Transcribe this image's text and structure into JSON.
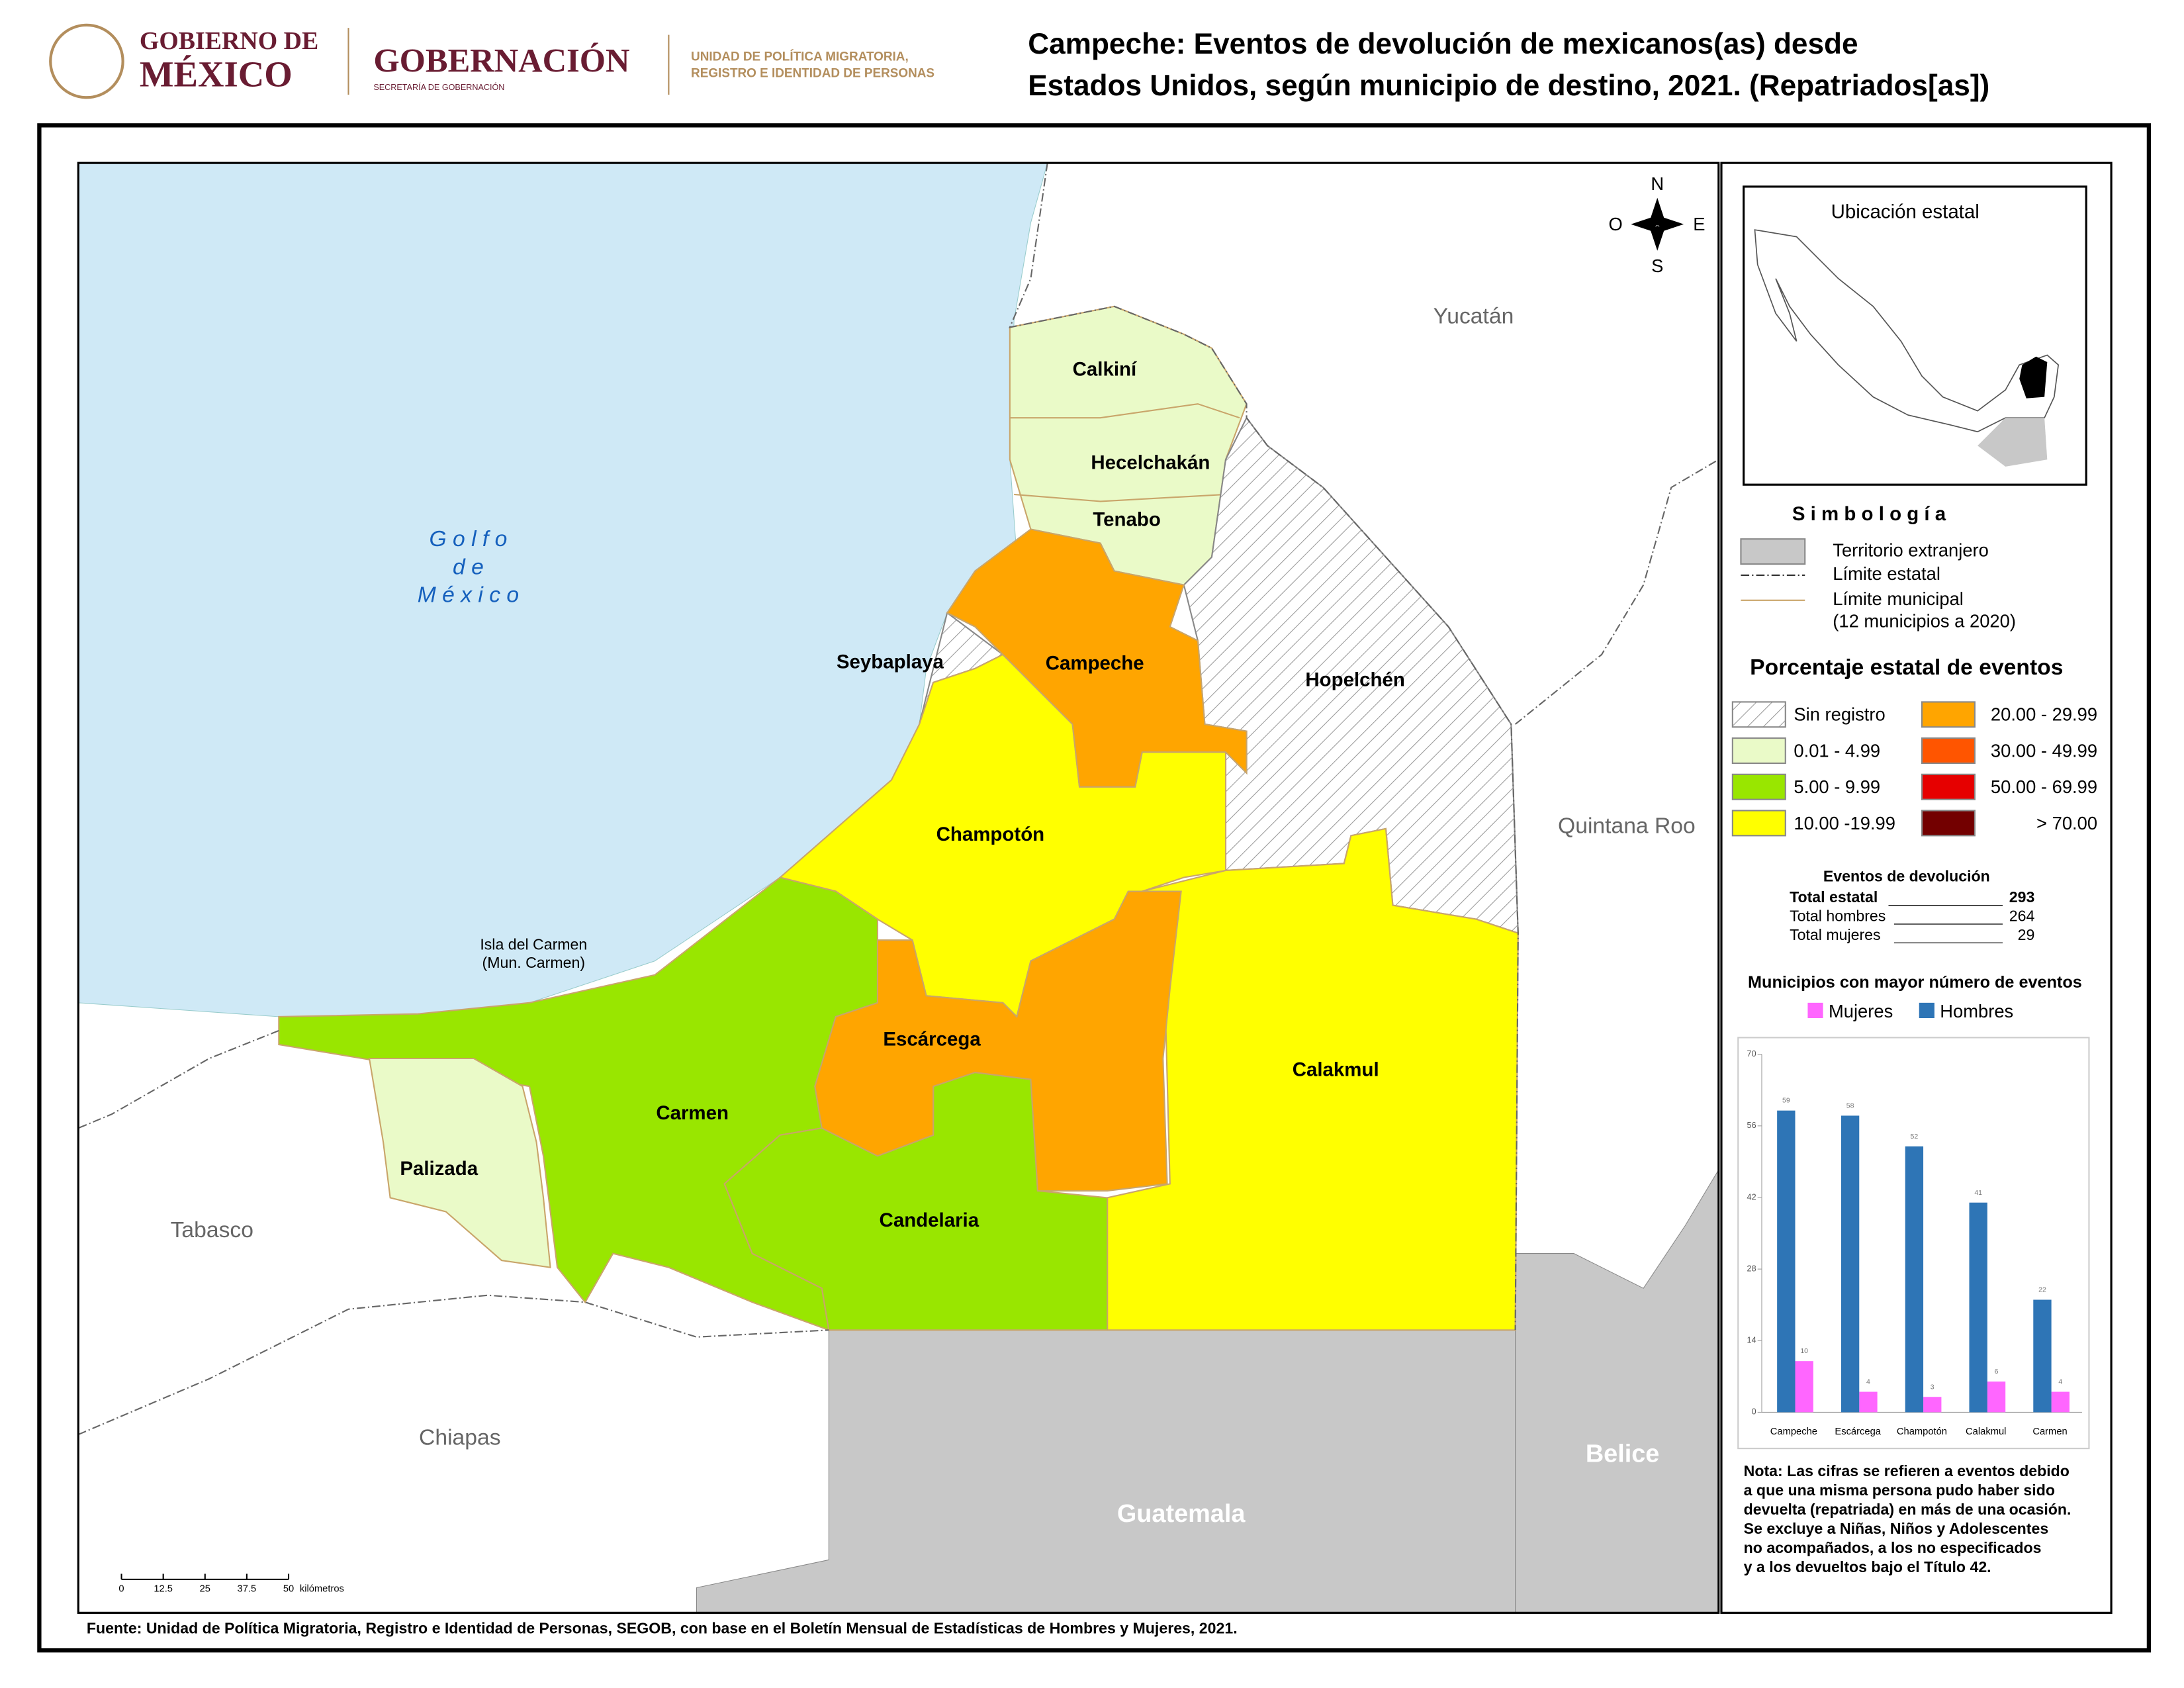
{
  "header": {
    "logo_line1": "GOBIERNO DE",
    "logo_line2": "MÉXICO",
    "ministry": "GOBERNACIÓN",
    "ministry_sub": "SECRETARÍA DE GOBERNACIÓN",
    "unit_line1": "UNIDAD DE POLÍTICA MIGRATORIA,",
    "unit_line2": "REGISTRO E IDENTIDAD DE PERSONAS"
  },
  "title": [
    "Campeche: Eventos de devolución de mexicanos(as) desde",
    "Estados Unidos, según municipio de destino, 2021. (Repatriados[as])"
  ],
  "map": {
    "sea": [
      "G o l f o",
      "d e",
      "M é x i c o"
    ],
    "neighbors": [
      "Yucatán",
      "Quintana Roo",
      "Tabasco",
      "Chiapas"
    ],
    "countries": [
      "Guatemala",
      "Belice"
    ],
    "municipalities": [
      "Calkiní",
      "Hecelchakán",
      "Tenabo",
      "Campeche",
      "Seybaplaya",
      "Hopelchén",
      "Champotón",
      "Calakmul",
      "Escárcega",
      "Candelaria",
      "Carmen",
      "Palizada"
    ],
    "island": [
      "Isla del Carmen",
      "(Mun. Carmen)"
    ],
    "compass": [
      "N",
      "S",
      "O",
      "E"
    ],
    "scale_bar": {
      "ticks": [
        0,
        12.5,
        25,
        37.5,
        50
      ],
      "unit": "kilómetros"
    }
  },
  "inset": {
    "title": "Ubicación estatal"
  },
  "symbology": {
    "title": "S i m b o l o g í a",
    "items": [
      "Territorio extranjero",
      "Límite estatal",
      "Límite municipal",
      "(12 municipios a 2020)"
    ]
  },
  "classes": {
    "title": "Porcentaje estatal de eventos",
    "items": [
      {
        "label": "Sin registro",
        "color": "hatch"
      },
      {
        "label": "0.01  - 4.99",
        "color": "#eafac8"
      },
      {
        "label": "5.00  - 9.99",
        "color": "#99e600"
      },
      {
        "label": "10.00 -19.99",
        "color": "#ffff00"
      },
      {
        "label": "20.00 - 29.99",
        "color": "#ffa500"
      },
      {
        "label": "30.00 - 49.99",
        "color": "#ff5500"
      },
      {
        "label": "50.00 - 69.99",
        "color": "#e60000"
      },
      {
        "label": "> 70.00",
        "color": "#730000"
      }
    ]
  },
  "totals": {
    "title": "Eventos de devolución",
    "rows": [
      {
        "label": "Total estatal",
        "value": 293
      },
      {
        "label": "Total hombres",
        "value": 264
      },
      {
        "label": "Total mujeres",
        "value": 29
      }
    ]
  },
  "chart": {
    "type": "bar",
    "title": "Municipios con mayor número de eventos",
    "categories": [
      "Campeche",
      "Escárcega",
      "Champotón",
      "Calakmul",
      "Carmen"
    ],
    "series": [
      {
        "name": "Mujeres",
        "color": "#ff66ff",
        "values": [
          10,
          4,
          3,
          6,
          4
        ]
      },
      {
        "name": "Hombres",
        "color": "#2e75b6",
        "values": [
          59,
          58,
          52,
          41,
          22
        ]
      }
    ],
    "ylim": [
      0,
      70
    ],
    "yticks": [
      0,
      14,
      28,
      42,
      56,
      70
    ]
  },
  "note": [
    "Nota: Las cifras se refieren a eventos debido",
    "a que una misma persona pudo haber sido",
    "devuelta (repatriada) en más de una ocasión.",
    "Se excluye a Niñas, Niños y Adolescentes",
    "no acompañados, a los no especificados",
    "y a los devueltos bajo el Título 42."
  ],
  "source": "Fuente: Unidad de Política Migratoria, Registro e Identidad de Personas, SEGOB, con base en el Boletín Mensual de Estadísticas de Hombres y Mujeres, 2021."
}
